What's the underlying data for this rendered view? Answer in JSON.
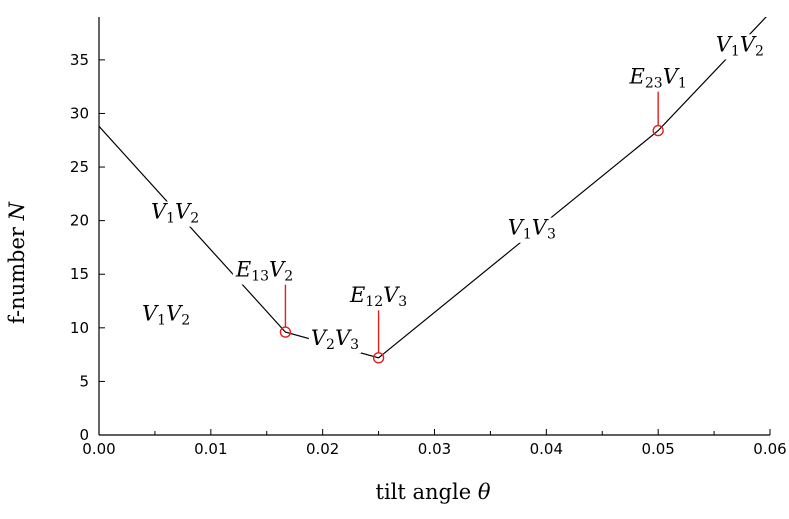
{
  "chart_data": {
    "type": "line",
    "xlabel": "tilt angle",
    "xlabel_symbol": "θ",
    "ylabel": "f-number",
    "ylabel_symbol": "N",
    "xlim": [
      0,
      0.06
    ],
    "ylim": [
      0,
      39
    ],
    "x_ticks": [
      0,
      0.01,
      0.02,
      0.03,
      0.04,
      0.05,
      0.06
    ],
    "x_tick_labels": [
      "0.00",
      "0.01",
      "0.02",
      "0.03",
      "0.04",
      "0.05",
      "0.06"
    ],
    "y_ticks": [
      0,
      5,
      10,
      15,
      20,
      25,
      30,
      35
    ],
    "y_tick_labels": [
      "0",
      "5",
      "10",
      "15",
      "20",
      "25",
      "30",
      "35"
    ],
    "grid": false,
    "series": [
      {
        "x": [
          0,
          0.01667,
          0.025,
          0.05,
          0.0601
        ],
        "y": [
          28.8,
          9.6,
          7.2,
          28.4,
          39.5
        ],
        "color": "#000000"
      }
    ],
    "markers": [
      {
        "x": 0.01667,
        "y": 9.6,
        "color": "#e02020"
      },
      {
        "x": 0.025,
        "y": 7.2,
        "color": "#e02020"
      },
      {
        "x": 0.05,
        "y": 28.4,
        "color": "#e02020"
      }
    ],
    "annotations": [
      {
        "main": "V",
        "sub": "1",
        "main2": "V",
        "sub2": "2",
        "x": 0.0068,
        "y": 20.2,
        "callout": false
      },
      {
        "main": "V",
        "sub": "1",
        "main2": "V",
        "sub2": "2",
        "x": 0.006,
        "y": 10.7,
        "callout": false
      },
      {
        "main": "E",
        "sub": "13",
        "main2": "V",
        "sub2": "2",
        "x": 0.0148,
        "y": 14.8,
        "callout": true,
        "target_x": 0.01667,
        "target_y": 9.6
      },
      {
        "main": "V",
        "sub": "2",
        "main2": "V",
        "sub2": "3",
        "x": 0.0211,
        "y": 8.4,
        "callout": false
      },
      {
        "main": "E",
        "sub": "12",
        "main2": "V",
        "sub2": "3",
        "x": 0.025,
        "y": 12.4,
        "callout": true,
        "target_x": 0.025,
        "target_y": 7.2
      },
      {
        "main": "V",
        "sub": "1",
        "main2": "V",
        "sub2": "3",
        "x": 0.0387,
        "y": 18.7,
        "callout": false
      },
      {
        "main": "E",
        "sub": "23",
        "main2": "V",
        "sub2": "1",
        "x": 0.05,
        "y": 32.8,
        "callout": true,
        "target_x": 0.05,
        "target_y": 28.4
      },
      {
        "main": "V",
        "sub": "1",
        "main2": "V",
        "sub2": "2",
        "x": 0.0573,
        "y": 35.8,
        "callout": false
      }
    ]
  }
}
